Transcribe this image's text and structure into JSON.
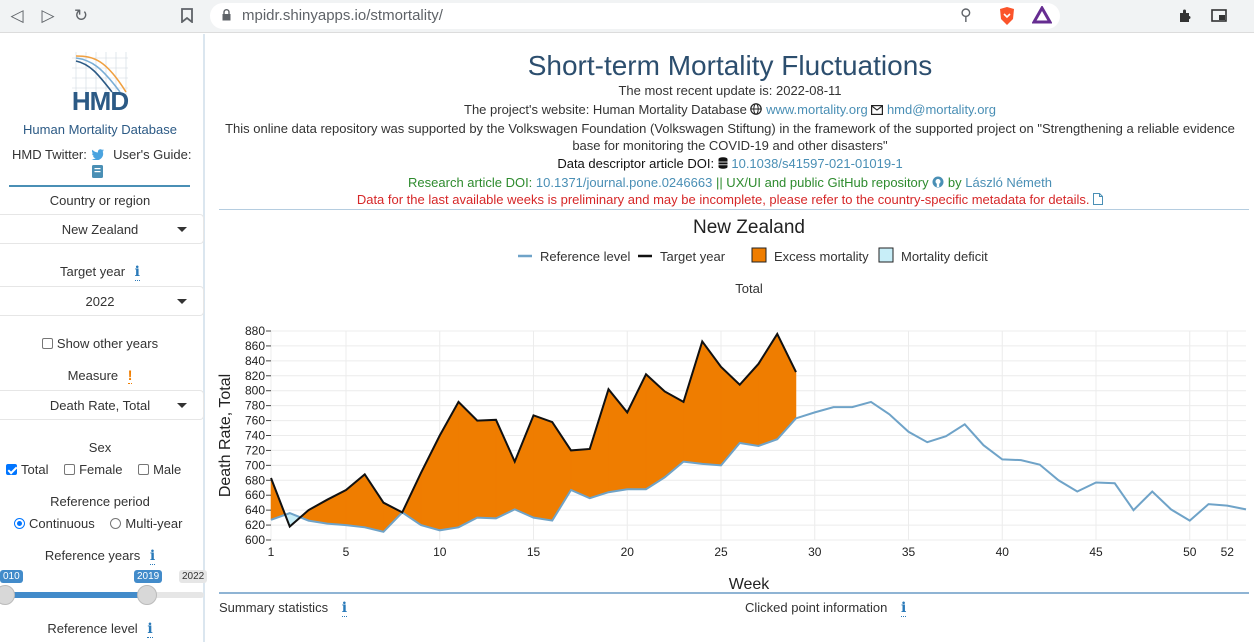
{
  "browser": {
    "url": "mpidr.shinyapps.io/stmortality/",
    "back_icon": "back-icon",
    "forward_icon": "forward-icon",
    "reload_icon": "reload-icon"
  },
  "sidebar": {
    "logo_text": "HMD",
    "org_name": "Human Mortality Database",
    "twitter_label": "HMD Twitter:",
    "guide_label": "User's Guide:",
    "country_label": "Country or region",
    "country_value": "New Zealand",
    "target_year_label": "Target year",
    "target_year_value": "2022",
    "show_other_years": "Show other years",
    "measure_label": "Measure",
    "measure_value": "Death Rate, Total",
    "sex_label": "Sex",
    "sex_total": "Total",
    "sex_female": "Female",
    "sex_male": "Male",
    "ref_period_label": "Reference period",
    "ref_continuous": "Continuous",
    "ref_multiyear": "Multi-year",
    "ref_years_label": "Reference years",
    "slider_start": "010",
    "slider_value": "2019",
    "slider_end": "2022",
    "ref_level_label": "Reference level",
    "slider_progress": 0.72
  },
  "header": {
    "title": "Short-term Mortality Fluctuations",
    "update": "The most recent update is: 2022-08-11",
    "website_prefix": "The project's website: Human Mortality Database",
    "website_link": "www.mortality.org",
    "email_link": "hmd@mortality.org",
    "support_line1": "This online data repository was supported by the Volkswagen Foundation (Volkswagen Stiftung) in the framework of the supported project on \"Strengthening a reliable evidence",
    "support_line2": "base for monitoring the COVID-19 and other disasters\"",
    "doi_prefix": "Data descriptor article DOI:",
    "doi_link": "10.1038/s41597-021-01019-1",
    "research_prefix": "Research article DOI:",
    "research_link": "10.1371/journal.pone.0246663",
    "research_mid": "|| UX/UI and public GitHub repository",
    "research_by": "by",
    "research_author": "László Németh",
    "warning": "Data for the last available weeks is preliminary and may be incomplete, please refer to the country-specific metadata for details."
  },
  "tabs": {
    "summary": "Summary statistics",
    "clicked": "Clicked point information"
  },
  "colors": {
    "reference": "#6fa3c8",
    "target": "#111111",
    "excess": "#ef7d00",
    "deficit": "#c8eef8"
  },
  "chart_data": {
    "type": "line",
    "title": "New Zealand",
    "subtitle": "Total",
    "xlabel": "Week",
    "ylabel": "Death Rate, Total",
    "xlim": [
      1,
      53
    ],
    "ylim": [
      600,
      880
    ],
    "xticks": [
      1,
      5,
      10,
      15,
      20,
      25,
      30,
      35,
      40,
      45,
      50,
      52
    ],
    "yticks": [
      600,
      620,
      640,
      660,
      680,
      700,
      720,
      740,
      760,
      780,
      800,
      820,
      840,
      860,
      880
    ],
    "legend": [
      "Reference level",
      "Target year",
      "Excess mortality",
      "Mortality deficit"
    ],
    "series": [
      {
        "name": "Reference level",
        "x": [
          1,
          2,
          3,
          4,
          5,
          6,
          7,
          8,
          9,
          10,
          11,
          12,
          13,
          14,
          15,
          16,
          17,
          18,
          19,
          20,
          21,
          22,
          23,
          24,
          25,
          26,
          27,
          28,
          29,
          30,
          31,
          32,
          33,
          34,
          35,
          36,
          37,
          38,
          39,
          40,
          41,
          42,
          43,
          44,
          45,
          46,
          47,
          48,
          49,
          50,
          51,
          52,
          53
        ],
        "values": [
          627,
          636,
          626,
          622,
          620,
          617,
          611,
          637,
          620,
          613,
          617,
          630,
          629,
          641,
          630,
          626,
          667,
          656,
          664,
          668,
          668,
          684,
          705,
          702,
          700,
          730,
          726,
          735,
          763,
          771,
          778,
          778,
          785,
          768,
          745,
          731,
          739,
          755,
          727,
          708,
          707,
          701,
          680,
          665,
          677,
          676,
          640,
          665,
          641,
          626,
          648,
          646,
          641
        ]
      },
      {
        "name": "Target year",
        "x": [
          1,
          2,
          3,
          4,
          5,
          6,
          7,
          8,
          9,
          10,
          11,
          12,
          13,
          14,
          15,
          16,
          17,
          18,
          19,
          20,
          21,
          22,
          23,
          24,
          25,
          26,
          27,
          28,
          29
        ],
        "values": [
          683,
          618,
          640,
          654,
          667,
          688,
          650,
          637,
          690,
          740,
          785,
          760,
          761,
          705,
          767,
          758,
          720,
          722,
          802,
          771,
          822,
          799,
          785,
          866,
          832,
          808,
          836,
          876,
          825
        ]
      }
    ]
  }
}
